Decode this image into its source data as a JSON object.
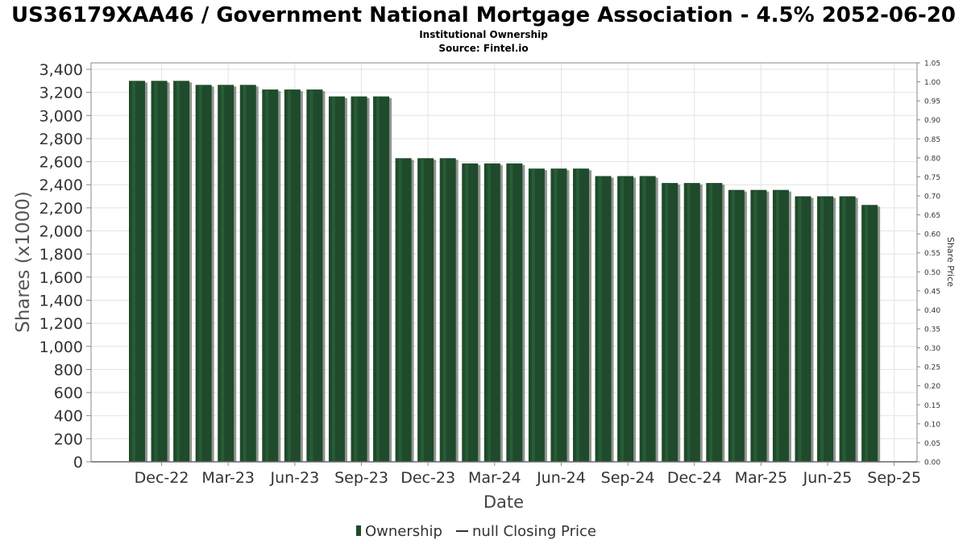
{
  "header": {
    "title": "US36179XAA46 / Government National Mortgage Association - 4.5% 2052-06-20",
    "subtitle": "Institutional Ownership",
    "source": "Source: Fintel.io"
  },
  "legend": {
    "ownership_label": "Ownership",
    "price_label": "null Closing Price"
  },
  "colors": {
    "bar": "#1f4a2b",
    "bar_highlight": "#2e6b40",
    "bar_shadow": "#8f958f",
    "grid": "#e3e3e3",
    "axis": "#888888"
  },
  "chart_data": {
    "type": "bar",
    "title": "US36179XAA46 / Government National Mortgage Association - 4.5% 2052-06-20",
    "xlabel": "Date",
    "ylabel": "Shares (x1000)",
    "y2label": "Share Price",
    "ylim": [
      0,
      3400
    ],
    "y2lim": [
      0,
      1.05
    ],
    "grid": true,
    "legend_position": "bottom",
    "x_tick_labels": [
      "Dec-22",
      "Mar-23",
      "Jun-23",
      "Sep-23",
      "Dec-23",
      "Mar-24",
      "Jun-24",
      "Sep-24",
      "Dec-24",
      "Mar-25",
      "Jun-25",
      "Sep-25"
    ],
    "y_tick_labels": [
      "0",
      "200",
      "400",
      "600",
      "800",
      "1,000",
      "1,200",
      "1,400",
      "1,600",
      "1,800",
      "2,000",
      "2,200",
      "2,400",
      "2,600",
      "2,800",
      "3,000",
      "3,200",
      "3,400"
    ],
    "y2_tick_labels": [
      "0.00",
      "0.05",
      "0.10",
      "0.15",
      "0.20",
      "0.25",
      "0.30",
      "0.35",
      "0.40",
      "0.45",
      "0.50",
      "0.55",
      "0.60",
      "0.65",
      "0.70",
      "0.75",
      "0.80",
      "0.85",
      "0.90",
      "0.95",
      "1.00",
      "1.05"
    ],
    "series": [
      {
        "name": "Ownership",
        "values": [
          3300,
          3300,
          3300,
          3265,
          3265,
          3265,
          3225,
          3225,
          3225,
          3165,
          3165,
          3165,
          2630,
          2630,
          2630,
          2585,
          2585,
          2585,
          2540,
          2540,
          2540,
          2475,
          2475,
          2475,
          2415,
          2415,
          2415,
          2355,
          2355,
          2355,
          2300,
          2300,
          2300,
          2225
        ]
      }
    ]
  }
}
